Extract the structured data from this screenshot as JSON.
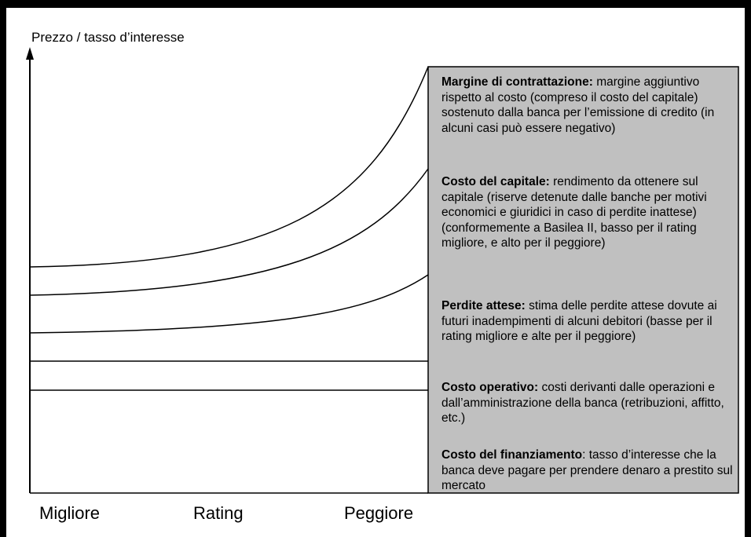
{
  "axis_label": "Prezzo / tasso d’interesse",
  "x_labels": [
    "Migliore",
    "Rating",
    "Peggiore"
  ],
  "layers": [
    {
      "title": "Margine di contrattazione:",
      "text": "margine aggiuntivo rispetto al costo (compreso il costo del capitale) sostenuto dalla banca per l’emissione di credito (in alcuni casi può essere negativo)"
    },
    {
      "title": "Costo del capitale:",
      "text": "rendimento da ottenere sul capitale (riserve detenute dalle banche per motivi economici e giuridici in caso di perdite inattese) (conformemente a Basilea II, basso per il rating migliore, e alto per il peggiore)"
    },
    {
      "title": "Perdite attese:",
      "text": "stima delle perdite attese dovute ai futuri inadempimenti di alcuni debitori (basse per il rating migliore e alte per il peggiore)"
    },
    {
      "title": "Costo operativo:",
      "text": "costi derivanti dalle operazioni e dall’amministrazione della banca (retribuzioni, affitto, etc.)"
    },
    {
      "title": "Costo del finanziamento",
      "text": ": tasso d’interesse che la banca deve pagare per prendere denaro a prestito sul mercato"
    }
  ]
}
